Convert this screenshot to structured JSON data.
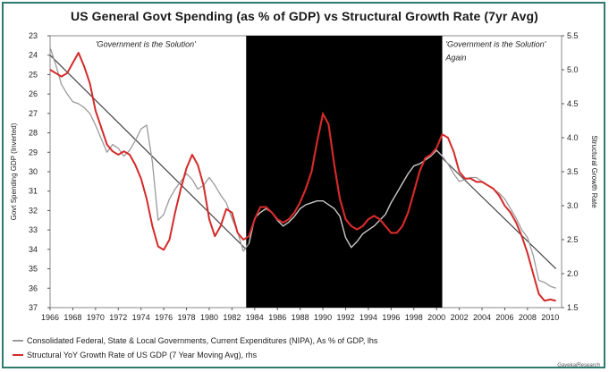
{
  "chart_data": {
    "type": "line",
    "title": "US General Govt Spending (as % of GDP) vs Structural Growth Rate (7yr Avg)",
    "xlim": [
      1966,
      2011
    ],
    "x_ticks": [
      "1966",
      "1968",
      "1970",
      "1972",
      "1974",
      "1976",
      "1978",
      "1980",
      "1982",
      "1984",
      "1986",
      "1988",
      "1990",
      "1992",
      "1994",
      "1996",
      "1998",
      "2000",
      "2002",
      "2004",
      "2006",
      "2008",
      "2010"
    ],
    "y_left": {
      "label": "Govt Spending GDP (Inverted)",
      "inverted": true,
      "lim": [
        23,
        37
      ],
      "ticks": [
        "23",
        "24",
        "25",
        "26",
        "27",
        "28",
        "29",
        "30",
        "31",
        "32",
        "33",
        "34",
        "35",
        "36",
        "37"
      ]
    },
    "y_right": {
      "label": "Structural Growth Rate",
      "lim": [
        1.5,
        5.5
      ],
      "ticks": [
        "5.5",
        "5.0",
        "4.5",
        "4.0",
        "3.5",
        "3.0",
        "2.5",
        "2.0",
        "1.5"
      ]
    },
    "shaded_region": {
      "x": [
        1983.25,
        2000.5
      ],
      "color": "#000000"
    },
    "annotations": [
      {
        "text": "'Government is the Solution'",
        "x": 1970,
        "y": 23.3
      },
      {
        "text": "'Government is the Solution'",
        "x": 2000.8,
        "y": 23.3
      },
      {
        "text": "Again",
        "x": 2000.8,
        "y": 24.0
      }
    ],
    "series": [
      {
        "name": "Consolidated Federal, State & Local Governments, Current Expenditures (NIPA), As % of GDP, lhs",
        "axis": "left",
        "color": "#9a9a9a",
        "points": [
          [
            1966,
            23.6
          ],
          [
            1966.5,
            24.5
          ],
          [
            1967,
            25.5
          ],
          [
            1967.5,
            26.0
          ],
          [
            1968,
            26.4
          ],
          [
            1968.5,
            26.5
          ],
          [
            1969,
            26.7
          ],
          [
            1969.5,
            27.0
          ],
          [
            1970,
            27.6
          ],
          [
            1970.5,
            28.3
          ],
          [
            1971,
            29.0
          ],
          [
            1971.5,
            28.6
          ],
          [
            1972,
            28.8
          ],
          [
            1972.5,
            29.2
          ],
          [
            1973,
            28.9
          ],
          [
            1973.5,
            28.4
          ],
          [
            1974,
            27.8
          ],
          [
            1974.5,
            27.6
          ],
          [
            1975,
            29.5
          ],
          [
            1975.5,
            32.5
          ],
          [
            1976,
            32.2
          ],
          [
            1976.5,
            31.4
          ],
          [
            1977,
            30.9
          ],
          [
            1977.5,
            30.5
          ],
          [
            1978,
            30.1
          ],
          [
            1978.5,
            30.4
          ],
          [
            1979,
            30.9
          ],
          [
            1979.5,
            30.7
          ],
          [
            1980,
            30.3
          ],
          [
            1980.5,
            30.7
          ],
          [
            1981,
            31.2
          ],
          [
            1981.5,
            31.6
          ],
          [
            1982,
            32.4
          ],
          [
            1982.5,
            33.1
          ],
          [
            1983,
            34.1
          ],
          [
            1983.5,
            33.7
          ],
          [
            1984,
            32.4
          ],
          [
            1984.5,
            32.1
          ],
          [
            1985,
            31.9
          ],
          [
            1985.5,
            32.1
          ],
          [
            1986,
            32.5
          ],
          [
            1986.5,
            32.8
          ],
          [
            1987,
            32.6
          ],
          [
            1987.5,
            32.3
          ],
          [
            1988,
            31.9
          ],
          [
            1988.5,
            31.7
          ],
          [
            1989,
            31.6
          ],
          [
            1989.5,
            31.5
          ],
          [
            1990,
            31.5
          ],
          [
            1990.5,
            31.7
          ],
          [
            1991,
            31.9
          ],
          [
            1991.5,
            32.3
          ],
          [
            1992,
            33.4
          ],
          [
            1992.5,
            33.9
          ],
          [
            1993,
            33.6
          ],
          [
            1993.5,
            33.2
          ],
          [
            1994,
            33.0
          ],
          [
            1994.5,
            32.8
          ],
          [
            1995,
            32.5
          ],
          [
            1995.5,
            32.2
          ],
          [
            1996,
            31.6
          ],
          [
            1996.5,
            31.1
          ],
          [
            1997,
            30.6
          ],
          [
            1997.5,
            30.1
          ],
          [
            1998,
            29.7
          ],
          [
            1998.5,
            29.6
          ],
          [
            1999,
            29.4
          ],
          [
            1999.5,
            29.2
          ],
          [
            2000,
            28.9
          ],
          [
            2000.5,
            29.2
          ],
          [
            2001,
            29.6
          ],
          [
            2001.5,
            30.1
          ],
          [
            2002,
            30.5
          ],
          [
            2002.5,
            30.4
          ],
          [
            2003,
            30.3
          ],
          [
            2003.5,
            30.3
          ],
          [
            2004,
            30.5
          ],
          [
            2004.5,
            30.7
          ],
          [
            2005,
            30.9
          ],
          [
            2005.5,
            31.1
          ],
          [
            2006,
            31.4
          ],
          [
            2006.5,
            31.9
          ],
          [
            2007,
            32.4
          ],
          [
            2007.5,
            33.0
          ],
          [
            2008,
            33.4
          ],
          [
            2008.5,
            34.3
          ],
          [
            2009,
            35.6
          ],
          [
            2009.5,
            35.7
          ],
          [
            2010,
            35.9
          ],
          [
            2010.5,
            36.0
          ]
        ]
      },
      {
        "name": "Structural YoY Growth Rate of US GDP (7 Year Moving Avg), rhs",
        "axis": "right",
        "color": "#d42a2a",
        "points": [
          [
            1966,
            5.0
          ],
          [
            1966.5,
            4.95
          ],
          [
            1967,
            4.9
          ],
          [
            1967.5,
            4.95
          ],
          [
            1968,
            5.1
          ],
          [
            1968.5,
            5.25
          ],
          [
            1969,
            5.05
          ],
          [
            1969.5,
            4.8
          ],
          [
            1970,
            4.4
          ],
          [
            1970.5,
            4.15
          ],
          [
            1971,
            3.9
          ],
          [
            1971.5,
            3.8
          ],
          [
            1972,
            3.75
          ],
          [
            1972.5,
            3.8
          ],
          [
            1973,
            3.75
          ],
          [
            1973.5,
            3.6
          ],
          [
            1974,
            3.4
          ],
          [
            1974.5,
            3.1
          ],
          [
            1975,
            2.7
          ],
          [
            1975.5,
            2.4
          ],
          [
            1976,
            2.35
          ],
          [
            1976.5,
            2.5
          ],
          [
            1977,
            2.9
          ],
          [
            1977.5,
            3.25
          ],
          [
            1978,
            3.55
          ],
          [
            1978.5,
            3.75
          ],
          [
            1979,
            3.6
          ],
          [
            1979.5,
            3.3
          ],
          [
            1980,
            2.8
          ],
          [
            1980.5,
            2.55
          ],
          [
            1981,
            2.7
          ],
          [
            1981.5,
            2.95
          ],
          [
            1982,
            2.9
          ],
          [
            1982.5,
            2.6
          ],
          [
            1983,
            2.5
          ],
          [
            1983.5,
            2.55
          ],
          [
            1984,
            2.8
          ],
          [
            1984.5,
            2.98
          ],
          [
            1985,
            2.98
          ],
          [
            1985.5,
            2.9
          ],
          [
            1986,
            2.8
          ],
          [
            1986.5,
            2.75
          ],
          [
            1987,
            2.8
          ],
          [
            1987.5,
            2.9
          ],
          [
            1988,
            3.05
          ],
          [
            1988.5,
            3.25
          ],
          [
            1989,
            3.5
          ],
          [
            1989.5,
            3.95
          ],
          [
            1990,
            4.35
          ],
          [
            1990.5,
            4.2
          ],
          [
            1991,
            3.6
          ],
          [
            1991.5,
            3.1
          ],
          [
            1992,
            2.8
          ],
          [
            1992.5,
            2.7
          ],
          [
            1993,
            2.65
          ],
          [
            1993.5,
            2.7
          ],
          [
            1994,
            2.8
          ],
          [
            1994.5,
            2.85
          ],
          [
            1995,
            2.8
          ],
          [
            1995.5,
            2.7
          ],
          [
            1996,
            2.6
          ],
          [
            1996.5,
            2.6
          ],
          [
            1997,
            2.7
          ],
          [
            1997.5,
            2.9
          ],
          [
            1998,
            3.2
          ],
          [
            1998.5,
            3.5
          ],
          [
            1999,
            3.7
          ],
          [
            1999.5,
            3.75
          ],
          [
            2000,
            3.85
          ],
          [
            2000.5,
            4.05
          ],
          [
            2001,
            4.0
          ],
          [
            2001.5,
            3.8
          ],
          [
            2002,
            3.5
          ],
          [
            2002.5,
            3.4
          ],
          [
            2003,
            3.4
          ],
          [
            2003.5,
            3.35
          ],
          [
            2004,
            3.35
          ],
          [
            2004.5,
            3.3
          ],
          [
            2005,
            3.25
          ],
          [
            2005.5,
            3.15
          ],
          [
            2006,
            3.0
          ],
          [
            2006.5,
            2.9
          ],
          [
            2007,
            2.75
          ],
          [
            2007.5,
            2.55
          ],
          [
            2008,
            2.3
          ],
          [
            2008.5,
            2.0
          ],
          [
            2009,
            1.7
          ],
          [
            2009.5,
            1.6
          ],
          [
            2010,
            1.62
          ],
          [
            2010.5,
            1.6
          ]
        ]
      }
    ],
    "trendlines": [
      {
        "axis": "left",
        "color": "#444444",
        "x": [
          1966,
          1983.25
        ],
        "y": [
          24.0,
          34.0
        ]
      },
      {
        "axis": "left",
        "color": "#444444",
        "x": [
          2000.5,
          2010.5
        ],
        "y": [
          29.3,
          35.0
        ]
      }
    ]
  },
  "legend": [
    {
      "text": "Consolidated Federal, State & Local Governments, Current Expenditures (NIPA), As % of GDP, lhs",
      "color": "#9a9a9a"
    },
    {
      "text": "Structural YoY Growth Rate of US GDP (7 Year Moving Avg), rhs",
      "color": "#d42a2a"
    }
  ],
  "source": "GavekalResearch"
}
